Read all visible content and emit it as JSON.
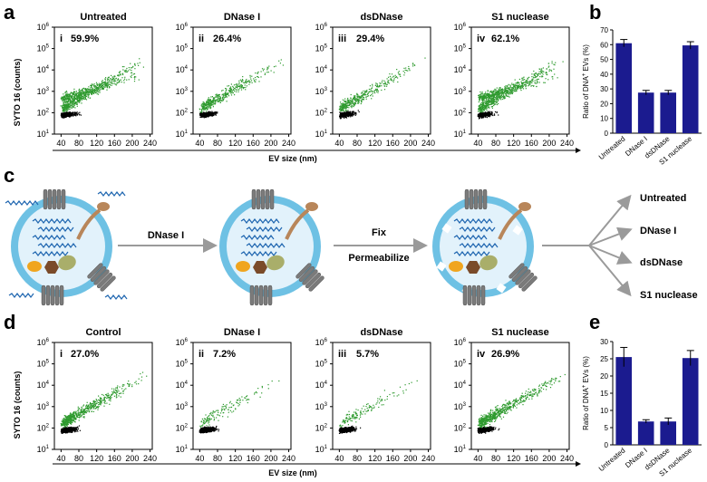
{
  "panel_labels": {
    "a": "a",
    "b": "b",
    "c": "c",
    "d": "d",
    "e": "e"
  },
  "colors": {
    "green": "#2e9a2e",
    "black": "#000000",
    "bar": "#1b1b8f",
    "arrow": "#9a9a9a",
    "membrane": "#6ec1e4",
    "lumen": "#e2f2fb",
    "dna": "#1f66b0",
    "protein_tan": "#b8865a",
    "protein_olive": "#a9ae6a",
    "protein_brown": "#7a4b2a",
    "protein_orange": "#f0a51f",
    "receptor": "#7b7b7b"
  },
  "axes": {
    "ylabel": "SYTO 16 (counts)",
    "xlabel": "EV size (nm)",
    "x_ticks": [
      "40",
      "80",
      "120",
      "160",
      "200",
      "240"
    ],
    "y_base": "10",
    "y_exponents": [
      "1",
      "2",
      "3",
      "4",
      "5",
      "6"
    ]
  },
  "scatter_row_a": [
    {
      "title": "Untreated",
      "roman": "i",
      "percent": "59.9%"
    },
    {
      "title": "DNase I",
      "roman": "ii",
      "percent": "26.4%"
    },
    {
      "title": "dsDNase",
      "roman": "iii",
      "percent": "29.4%"
    },
    {
      "title": "S1 nuclease",
      "roman": "iv",
      "percent": "62.1%"
    }
  ],
  "scatter_row_d": [
    {
      "title": "Control",
      "roman": "i",
      "percent": "27.0%"
    },
    {
      "title": "DNase I",
      "roman": "ii",
      "percent": "7.2%"
    },
    {
      "title": "dsDNase",
      "roman": "iii",
      "percent": "5.7%"
    },
    {
      "title": "S1 nuclease",
      "roman": "iv",
      "percent": "26.9%"
    }
  ],
  "diagram": {
    "step1": "DNase I",
    "step2a": "Fix",
    "step2b": "Permeabilize",
    "outcomes": [
      "Untreated",
      "DNase I",
      "dsDNase",
      "S1 nuclease"
    ]
  },
  "chart_data": [
    {
      "type": "bar",
      "panel": "b",
      "ylabel_prefix": "Ratio of DNA",
      "ylabel_sup": "+",
      "ylabel_suffix": " EVs (%)",
      "categories": [
        "Untreated",
        "DNase I",
        "dsDNase",
        "S1 nuclease"
      ],
      "values": [
        61,
        27.5,
        27.5,
        59.5
      ],
      "errors": [
        2.5,
        1.5,
        1.5,
        2.5
      ],
      "ylim": [
        0,
        70
      ],
      "y_ticks": [
        "0",
        "10",
        "20",
        "30",
        "40",
        "50",
        "60",
        "70"
      ]
    },
    {
      "type": "bar",
      "panel": "e",
      "ylabel_prefix": "Ratio of DNA",
      "ylabel_sup": "+",
      "ylabel_suffix": " EVs (%)",
      "categories": [
        "Untreated",
        "DNase I",
        "dsDNase",
        "S1 nuclease"
      ],
      "values": [
        25.5,
        6.8,
        6.8,
        25.2
      ],
      "errors": [
        2.8,
        0.5,
        1.0,
        2.2
      ],
      "ylim": [
        0,
        30
      ],
      "y_ticks": [
        "0",
        "5",
        "10",
        "15",
        "20",
        "25",
        "30"
      ]
    }
  ]
}
